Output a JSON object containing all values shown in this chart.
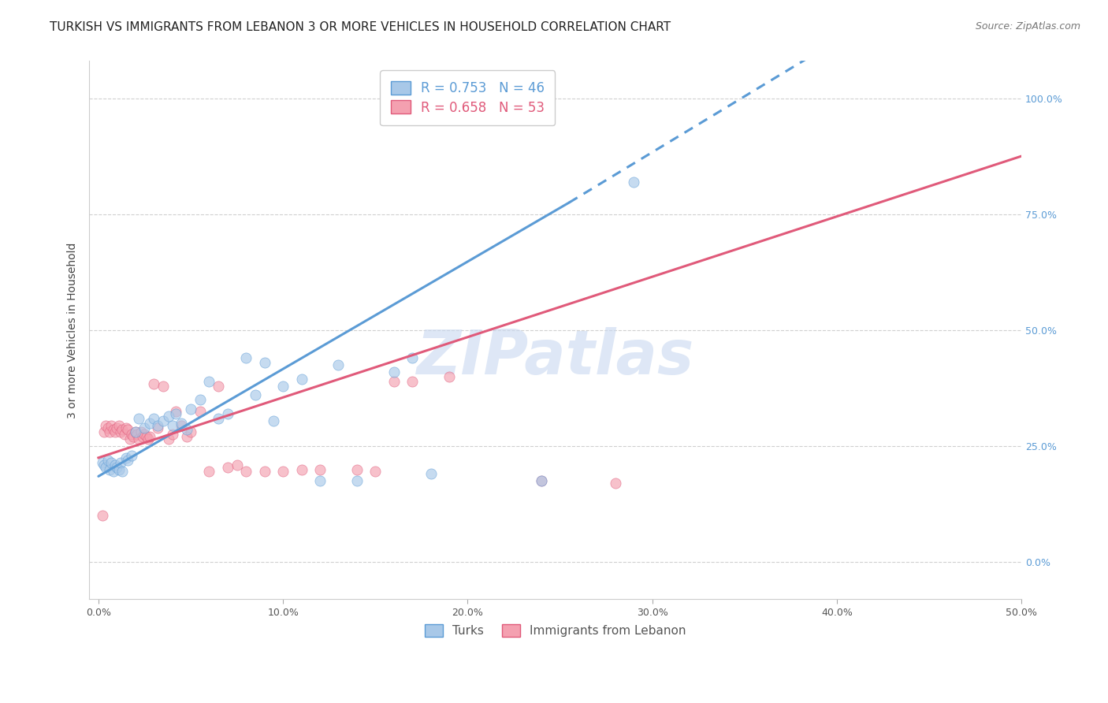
{
  "title": "TURKISH VS IMMIGRANTS FROM LEBANON 3 OR MORE VEHICLES IN HOUSEHOLD CORRELATION CHART",
  "source": "Source: ZipAtlas.com",
  "ylabel": "3 or more Vehicles in Household",
  "x_ticks": [
    "0.0%",
    "10.0%",
    "20.0%",
    "30.0%",
    "40.0%",
    "50.0%"
  ],
  "x_tick_vals": [
    0.0,
    0.1,
    0.2,
    0.3,
    0.4,
    0.5
  ],
  "y_ticks_right": [
    "100.0%",
    "75.0%",
    "50.0%",
    "25.0%",
    "0.0%"
  ],
  "y_tick_vals": [
    1.0,
    0.75,
    0.5,
    0.25,
    0.0
  ],
  "xlim": [
    -0.005,
    0.5
  ],
  "ylim": [
    -0.08,
    1.08
  ],
  "legend_entries": [
    {
      "label": "R = 0.753   N = 46",
      "color": "#5b9bd5"
    },
    {
      "label": "R = 0.658   N = 53",
      "color": "#e05a7a"
    }
  ],
  "turks_scatter": [
    [
      0.002,
      0.215
    ],
    [
      0.003,
      0.21
    ],
    [
      0.004,
      0.205
    ],
    [
      0.005,
      0.22
    ],
    [
      0.006,
      0.2
    ],
    [
      0.007,
      0.215
    ],
    [
      0.008,
      0.195
    ],
    [
      0.009,
      0.21
    ],
    [
      0.01,
      0.205
    ],
    [
      0.011,
      0.2
    ],
    [
      0.012,
      0.215
    ],
    [
      0.013,
      0.195
    ],
    [
      0.015,
      0.225
    ],
    [
      0.016,
      0.22
    ],
    [
      0.018,
      0.23
    ],
    [
      0.02,
      0.28
    ],
    [
      0.022,
      0.31
    ],
    [
      0.025,
      0.29
    ],
    [
      0.028,
      0.3
    ],
    [
      0.03,
      0.31
    ],
    [
      0.032,
      0.295
    ],
    [
      0.035,
      0.305
    ],
    [
      0.038,
      0.315
    ],
    [
      0.04,
      0.295
    ],
    [
      0.042,
      0.32
    ],
    [
      0.045,
      0.3
    ],
    [
      0.048,
      0.285
    ],
    [
      0.05,
      0.33
    ],
    [
      0.055,
      0.35
    ],
    [
      0.06,
      0.39
    ],
    [
      0.065,
      0.31
    ],
    [
      0.07,
      0.32
    ],
    [
      0.08,
      0.44
    ],
    [
      0.085,
      0.36
    ],
    [
      0.09,
      0.43
    ],
    [
      0.095,
      0.305
    ],
    [
      0.1,
      0.38
    ],
    [
      0.11,
      0.395
    ],
    [
      0.12,
      0.175
    ],
    [
      0.13,
      0.425
    ],
    [
      0.14,
      0.175
    ],
    [
      0.16,
      0.41
    ],
    [
      0.17,
      0.44
    ],
    [
      0.18,
      0.19
    ],
    [
      0.24,
      0.175
    ],
    [
      0.29,
      0.82
    ]
  ],
  "lebanon_scatter": [
    [
      0.002,
      0.1
    ],
    [
      0.003,
      0.28
    ],
    [
      0.004,
      0.295
    ],
    [
      0.005,
      0.29
    ],
    [
      0.006,
      0.28
    ],
    [
      0.007,
      0.295
    ],
    [
      0.008,
      0.285
    ],
    [
      0.009,
      0.28
    ],
    [
      0.01,
      0.29
    ],
    [
      0.011,
      0.295
    ],
    [
      0.012,
      0.28
    ],
    [
      0.013,
      0.285
    ],
    [
      0.014,
      0.275
    ],
    [
      0.015,
      0.29
    ],
    [
      0.016,
      0.285
    ],
    [
      0.017,
      0.265
    ],
    [
      0.018,
      0.275
    ],
    [
      0.019,
      0.27
    ],
    [
      0.02,
      0.28
    ],
    [
      0.021,
      0.275
    ],
    [
      0.022,
      0.265
    ],
    [
      0.023,
      0.28
    ],
    [
      0.024,
      0.27
    ],
    [
      0.025,
      0.275
    ],
    [
      0.026,
      0.27
    ],
    [
      0.027,
      0.265
    ],
    [
      0.028,
      0.27
    ],
    [
      0.03,
      0.385
    ],
    [
      0.032,
      0.29
    ],
    [
      0.035,
      0.38
    ],
    [
      0.038,
      0.265
    ],
    [
      0.04,
      0.275
    ],
    [
      0.042,
      0.325
    ],
    [
      0.045,
      0.295
    ],
    [
      0.048,
      0.27
    ],
    [
      0.05,
      0.28
    ],
    [
      0.055,
      0.325
    ],
    [
      0.06,
      0.195
    ],
    [
      0.065,
      0.38
    ],
    [
      0.07,
      0.205
    ],
    [
      0.075,
      0.21
    ],
    [
      0.08,
      0.195
    ],
    [
      0.09,
      0.195
    ],
    [
      0.1,
      0.195
    ],
    [
      0.11,
      0.2
    ],
    [
      0.12,
      0.2
    ],
    [
      0.14,
      0.2
    ],
    [
      0.15,
      0.195
    ],
    [
      0.16,
      0.39
    ],
    [
      0.17,
      0.39
    ],
    [
      0.19,
      0.4
    ],
    [
      0.24,
      0.175
    ],
    [
      0.28,
      0.17
    ]
  ],
  "turks_solid": {
    "x": [
      0.0,
      0.255
    ],
    "y": [
      0.185,
      0.775
    ]
  },
  "turks_dashed": {
    "x": [
      0.255,
      0.5
    ],
    "y": [
      0.775,
      1.365
    ]
  },
  "lebanon_line": {
    "x": [
      0.0,
      0.5
    ],
    "y": [
      0.225,
      0.875
    ]
  },
  "turks_color": "#5b9bd5",
  "turks_scatter_color": "#a8c8e8",
  "lebanon_color": "#e05a7a",
  "lebanon_scatter_color": "#f4a0b0",
  "background_color": "#ffffff",
  "watermark": "ZIPatlas",
  "watermark_color": "#c8d8f0",
  "grid_color": "#d0d0d0",
  "title_fontsize": 11,
  "axis_label_fontsize": 10,
  "tick_fontsize": 9,
  "scatter_size": 90,
  "scatter_alpha": 0.65,
  "line_width": 2.2
}
